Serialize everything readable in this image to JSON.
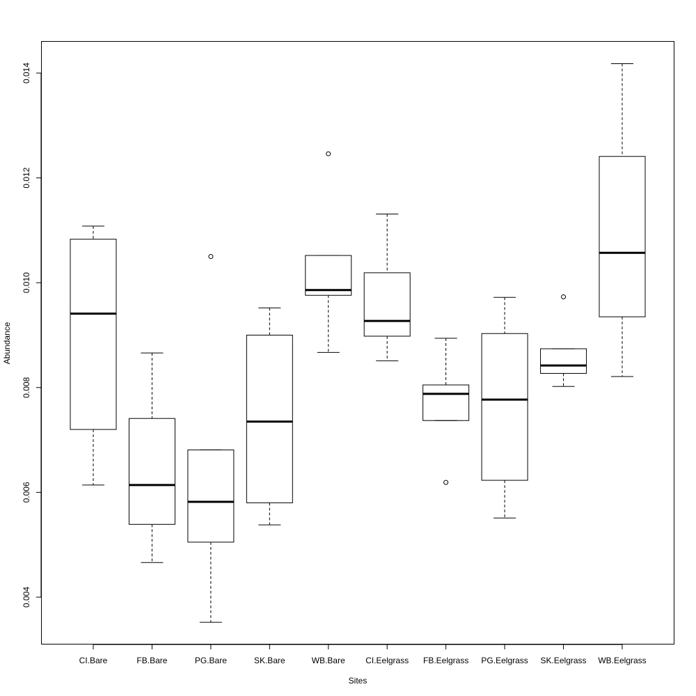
{
  "chart_data": {
    "type": "boxplot",
    "title": "",
    "xlabel": "Sites",
    "ylabel": "Abundance",
    "ylim": [
      0.00315,
      0.0146
    ],
    "yticks": [
      0.004,
      0.006,
      0.008,
      0.01,
      0.012,
      0.014
    ],
    "ytick_labels": [
      "0.004",
      "0.006",
      "0.008",
      "0.010",
      "0.012",
      "0.014"
    ],
    "grid": false,
    "categories": [
      "CI.Bare",
      "FB.Bare",
      "PG.Bare",
      "SK.Bare",
      "WB.Bare",
      "CI.Eelgrass",
      "FB.Eelgrass",
      "PG.Eelgrass",
      "SK.Eelgrass",
      "WB.Eelgrass"
    ],
    "boxes": [
      {
        "whisker_low": 0.00614,
        "q1": 0.0072,
        "median": 0.00941,
        "q3": 0.01083,
        "whisker_high": 0.01108,
        "outliers": []
      },
      {
        "whisker_low": 0.00466,
        "q1": 0.00539,
        "median": 0.00614,
        "q3": 0.00741,
        "whisker_high": 0.00866,
        "outliers": []
      },
      {
        "whisker_low": 0.00352,
        "q1": 0.00505,
        "median": 0.00582,
        "q3": 0.00681,
        "whisker_high": 0.00681,
        "outliers": [
          0.0105
        ]
      },
      {
        "whisker_low": 0.00538,
        "q1": 0.0058,
        "median": 0.00735,
        "q3": 0.009,
        "whisker_high": 0.00952,
        "outliers": []
      },
      {
        "whisker_low": 0.00867,
        "q1": 0.00976,
        "median": 0.00986,
        "q3": 0.01052,
        "whisker_high": 0.01052,
        "outliers": [
          0.01246
        ]
      },
      {
        "whisker_low": 0.00851,
        "q1": 0.00898,
        "median": 0.00927,
        "q3": 0.01019,
        "whisker_high": 0.01131,
        "outliers": []
      },
      {
        "whisker_low": 0.00737,
        "q1": 0.00737,
        "median": 0.00788,
        "q3": 0.00805,
        "whisker_high": 0.00894,
        "outliers": [
          0.00619
        ]
      },
      {
        "whisker_low": 0.00551,
        "q1": 0.00623,
        "median": 0.00777,
        "q3": 0.00903,
        "whisker_high": 0.00972,
        "outliers": []
      },
      {
        "whisker_low": 0.00802,
        "q1": 0.00827,
        "median": 0.00842,
        "q3": 0.00874,
        "whisker_high": 0.00874,
        "outliers": [
          0.00973
        ]
      },
      {
        "whisker_low": 0.00821,
        "q1": 0.00935,
        "median": 0.01057,
        "q3": 0.01241,
        "whisker_high": 0.01418,
        "outliers": []
      }
    ]
  }
}
